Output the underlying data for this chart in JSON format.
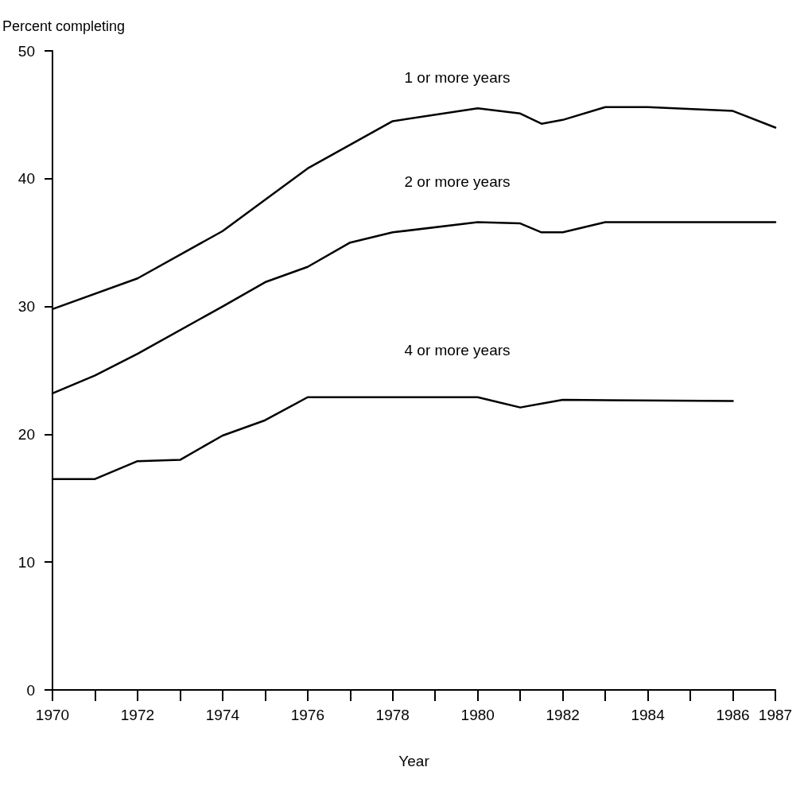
{
  "chart_data": {
    "type": "line",
    "ylabel": "Percent completing",
    "xlabel": "Year",
    "xlim": [
      1970,
      1987
    ],
    "xticks": [
      1970,
      {
        "value": 1971,
        "label": null
      },
      1972,
      {
        "value": 1973,
        "label": null
      },
      1974,
      {
        "value": 1975,
        "label": null
      },
      1976,
      {
        "value": 1977,
        "label": null
      },
      1978,
      {
        "value": 1979,
        "label": null
      },
      1980,
      {
        "value": 1981,
        "label": null
      },
      1982,
      {
        "value": 1983,
        "label": null
      },
      1984,
      {
        "value": 1985,
        "label": null
      },
      1986,
      1987
    ],
    "ylim": [
      0,
      50
    ],
    "yticks": [
      0,
      10,
      20,
      30,
      40,
      50
    ],
    "grid": false,
    "marker": "none",
    "line_style": "solid",
    "series": [
      {
        "color": "#000000",
        "x": [
          1970,
          1972,
          1974,
          1976,
          1978,
          1980,
          1981,
          1981.5,
          1982,
          1983,
          1984,
          1986,
          1987
        ],
        "values": [
          29.8,
          32.2,
          35.9,
          40.8,
          44.5,
          45.5,
          45.1,
          44.3,
          44.6,
          45.6,
          45.6,
          45.3,
          44.0
        ]
      },
      {
        "color": "#000000",
        "x": [
          1970,
          1971,
          1972,
          1974,
          1975,
          1976,
          1977,
          1978,
          1980,
          1981,
          1981.5,
          1982,
          1983,
          1987
        ],
        "values": [
          23.2,
          24.6,
          26.3,
          30.0,
          31.9,
          33.1,
          35.0,
          35.8,
          36.6,
          36.5,
          35.8,
          35.8,
          36.6,
          36.6
        ]
      },
      {
        "color": "#000000",
        "x": [
          1970,
          1971,
          1972,
          1973,
          1974,
          1975,
          1976,
          1980,
          1981,
          1982,
          1986
        ],
        "values": [
          16.5,
          16.5,
          17.9,
          18.0,
          19.9,
          21.1,
          22.9,
          22.9,
          22.1,
          22.7,
          22.6
        ]
      }
    ],
    "annotations": [
      "1 or more years",
      "2 or more years",
      "4 or more years"
    ]
  }
}
